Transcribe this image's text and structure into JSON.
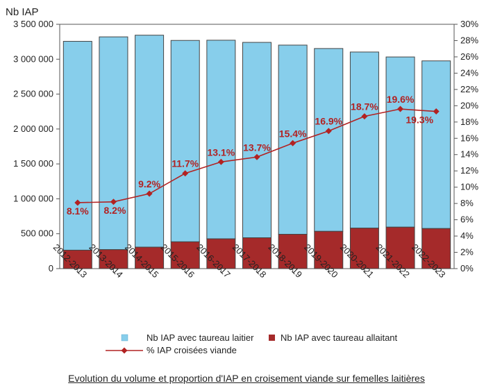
{
  "chart_data": {
    "type": "bar",
    "stacked": true,
    "categories": [
      "2012-2013",
      "2013-2014",
      "2014-2015",
      "2015-2016",
      "2016-2017",
      "2017-2018",
      "2018-2019",
      "2019-2020",
      "2020-2021",
      "2021-2022",
      "2022-2023"
    ],
    "series": [
      {
        "name": "Nb IAP avec taureau allaitant",
        "color": "#a52a2a",
        "values": [
          264000,
          272000,
          308000,
          384000,
          427000,
          442000,
          492000,
          534000,
          580000,
          594000,
          574000
        ]
      },
      {
        "name": "Nb IAP avec taureau laitier",
        "color": "#87ceeb",
        "values": [
          2992000,
          3048000,
          3036000,
          2885000,
          2845000,
          2799000,
          2710000,
          2619000,
          2523000,
          2438000,
          2402000
        ]
      }
    ],
    "line_series": {
      "name": "% IAP croisées viande",
      "color": "#b22222",
      "axis": "right",
      "values": [
        8.1,
        8.2,
        9.2,
        11.7,
        13.1,
        13.7,
        15.4,
        16.9,
        18.7,
        19.6,
        19.3
      ],
      "labels": [
        "8.1%",
        "8.2%",
        "9.2%",
        "11.7%",
        "13.1%",
        "13.7%",
        "15.4%",
        "16.9%",
        "18.7%",
        "19.6%",
        "19.3%"
      ]
    },
    "ylabel": "Nb IAP",
    "ylim": [
      0,
      3500000
    ],
    "yticks": [
      "0",
      "500 000",
      "1 000 000",
      "1 500 000",
      "2 000 000",
      "2 500 000",
      "3 000 000",
      "3 500 000"
    ],
    "y2lim": [
      0,
      30
    ],
    "y2ticks": [
      "0%",
      "2%",
      "4%",
      "6%",
      "8%",
      "10%",
      "12%",
      "14%",
      "16%",
      "18%",
      "20%",
      "22%",
      "24%",
      "26%",
      "28%",
      "30%"
    ],
    "legend_position": "bottom",
    "caption": "Evolution du volume et proportion d'IAP en croisement viande sur femelles laitières"
  }
}
